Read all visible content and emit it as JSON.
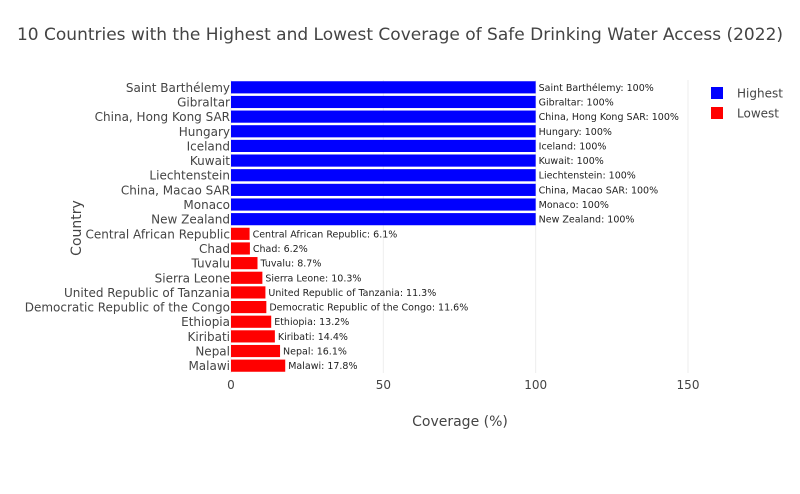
{
  "chart_data": {
    "type": "bar",
    "orientation": "horizontal",
    "title": "10 Countries with the Highest and Lowest Coverage of Safe Drinking Water Access (2022)",
    "xlabel": "Coverage (%)",
    "ylabel": "Country",
    "xlim": [
      0,
      150
    ],
    "xticks": [
      0,
      50,
      100,
      150
    ],
    "grid": true,
    "legend_position": "top-right",
    "series": [
      {
        "name": "Highest",
        "color": "#0000ff",
        "categories": [
          "Saint Barthélemy",
          "Gibraltar",
          "China, Hong Kong SAR",
          "Hungary",
          "Iceland",
          "Kuwait",
          "Liechtenstein",
          "China, Macao SAR",
          "Monaco",
          "New Zealand"
        ],
        "values": [
          100,
          100,
          100,
          100,
          100,
          100,
          100,
          100,
          100,
          100
        ],
        "labels": [
          "Saint Barthélemy: 100%",
          "Gibraltar: 100%",
          "China, Hong Kong SAR: 100%",
          "Hungary: 100%",
          "Iceland: 100%",
          "Kuwait: 100%",
          "Liechtenstein: 100%",
          "China, Macao SAR: 100%",
          "Monaco: 100%",
          "New Zealand: 100%"
        ]
      },
      {
        "name": "Lowest",
        "color": "#ff0000",
        "categories": [
          "Central African Republic",
          "Chad",
          "Tuvalu",
          "Sierra Leone",
          "United Republic of Tanzania",
          "Democratic Republic of the Congo",
          "Ethiopia",
          "Kiribati",
          "Nepal",
          "Malawi"
        ],
        "values": [
          6.1,
          6.2,
          8.7,
          10.3,
          11.3,
          11.6,
          13.2,
          14.4,
          16.1,
          17.8
        ],
        "labels": [
          "Central African Republic: 6.1%",
          "Chad: 6.2%",
          "Tuvalu: 8.7%",
          "Sierra Leone: 10.3%",
          "United Republic of Tanzania: 11.3%",
          "Democratic Republic of the Congo: 11.6%",
          "Ethiopia: 13.2%",
          "Kiribati: 14.4%",
          "Nepal: 16.1%",
          "Malawi: 17.8%"
        ]
      }
    ]
  }
}
